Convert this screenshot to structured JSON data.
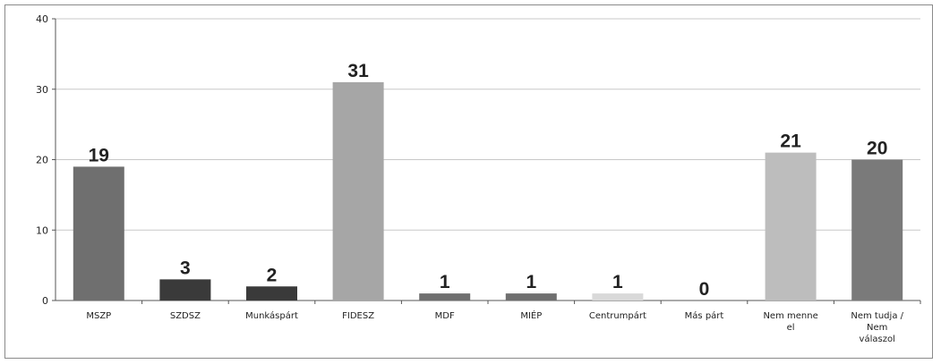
{
  "chart_data": {
    "type": "bar",
    "categories": [
      [
        "MSZP"
      ],
      [
        "SZDSZ"
      ],
      [
        "Munkáspárt"
      ],
      [
        "FIDESZ"
      ],
      [
        "MDF"
      ],
      [
        "MIÉP"
      ],
      [
        "Centrumpárt"
      ],
      [
        "Más párt"
      ],
      [
        "Nem menne",
        "el"
      ],
      [
        "Nem tudja /",
        "Nem",
        "válaszol"
      ]
    ],
    "values": [
      19,
      3,
      2,
      31,
      1,
      1,
      1,
      0,
      21,
      20
    ],
    "data_labels": [
      "19",
      "3",
      "2",
      "31",
      "1",
      "1",
      "1",
      "0",
      "21",
      "20"
    ],
    "yticks": [
      "0",
      "10",
      "20",
      "30",
      "40"
    ],
    "ylim": [
      0,
      40
    ],
    "grid": true,
    "legend": "none",
    "colors": [
      "#6f6f6f",
      "#3a3a3a",
      "#3a3a3a",
      "#a6a6a6",
      "#6f6f6f",
      "#6f6f6f",
      "#d9d9d9",
      "#888888",
      "#bdbdbd",
      "#7a7a7a"
    ]
  }
}
